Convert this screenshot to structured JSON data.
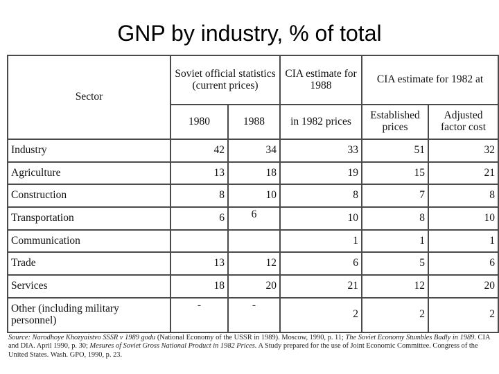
{
  "title": "GNP by industry, % of total",
  "table": {
    "headers": {
      "sector": "Sector",
      "soviet": "Soviet official statistics (current prices)",
      "cia1988": "CIA estimate for 1988",
      "cia1982": "CIA estimate for 1982 at",
      "y1980": "1980",
      "y1988": "1988",
      "in1982": "in 1982 prices",
      "established": "Established prices",
      "adjusted": "Adjusted factor cost"
    },
    "rows": [
      {
        "sector": "Industry",
        "c1980": "42",
        "c1988": "34",
        "cia88": "33",
        "est": "51",
        "adj": "32"
      },
      {
        "sector": "Agriculture",
        "c1980": "13",
        "c1988": "18",
        "cia88": "19",
        "est": "15",
        "adj": "21"
      },
      {
        "sector": "Construction",
        "c1980": "8",
        "c1988": "10",
        "cia88": "8",
        "est": "7",
        "adj": "8"
      },
      {
        "sector": "Transportation",
        "c1980": "6",
        "c1988": "6",
        "cia88": "10",
        "est": "8",
        "adj": "10"
      },
      {
        "sector": "Communication",
        "c1980": "",
        "c1988": "",
        "cia88": "1",
        "est": "1",
        "adj": "1"
      },
      {
        "sector": "Trade",
        "c1980": "13",
        "c1988": "12",
        "cia88": "6",
        "est": "5",
        "adj": "6"
      },
      {
        "sector": "Services",
        "c1980": "18",
        "c1988": "20",
        "cia88": "21",
        "est": "12",
        "adj": "20"
      },
      {
        "sector": "Other (including military personnel)",
        "c1980": "-",
        "c1988": "-",
        "cia88": "2",
        "est": "2",
        "adj": "2"
      }
    ]
  },
  "source": {
    "label": "Source:",
    "part1": "Narodhoye Khozyaistvo SSSR v 1989 godu",
    "part2": " (National Economy of the USSR in 1989). Moscow, 1990, p. 11; ",
    "part3": "The Soviet Economy Stumbles Badly in 1989.",
    "part4": " CIA and DIA. April 1990, p. 30; ",
    "part5": "Mesures of Soviet Gross National Product in 1982 Prices.",
    "part6": " A Study prepared for the use of Joint Economic Committee. Congress of the United States. Wash. GPO, 1990, p. 23."
  }
}
